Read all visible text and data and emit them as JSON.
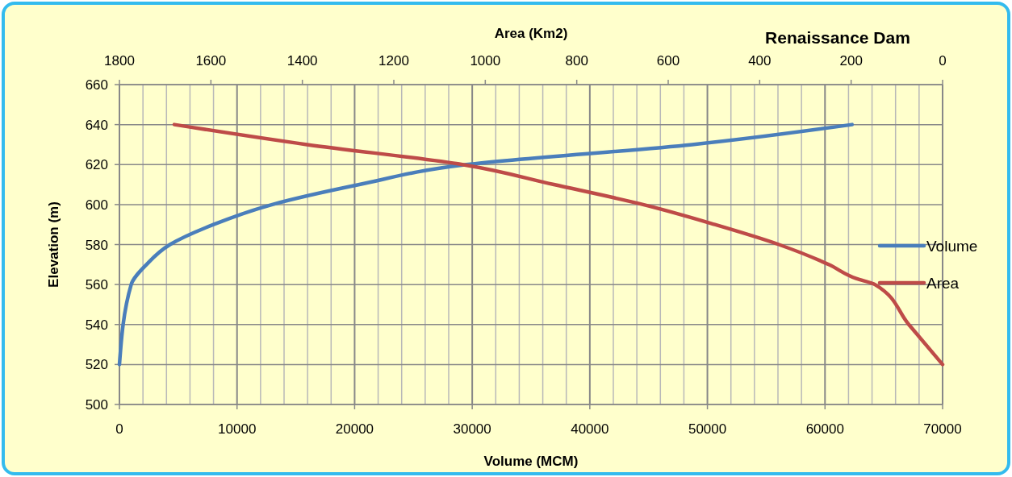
{
  "chart_data": {
    "type": "line",
    "title": "Renaissance Dam",
    "xlabel": "Volume (MCM)",
    "x2label": "Area (Km2)",
    "ylabel": "Elevation (m)",
    "xlim": [
      0,
      70000
    ],
    "xticks": [
      0,
      {
        "value": 2000,
        "label": null
      },
      {
        "value": 4000,
        "label": null
      },
      {
        "value": 6000,
        "label": null
      },
      {
        "value": 8000,
        "label": null
      },
      10000,
      {
        "value": 12000,
        "label": null
      },
      {
        "value": 14000,
        "label": null
      },
      {
        "value": 16000,
        "label": null
      },
      {
        "value": 18000,
        "label": null
      },
      20000,
      {
        "value": 22000,
        "label": null
      },
      {
        "value": 24000,
        "label": null
      },
      {
        "value": 26000,
        "label": null
      },
      {
        "value": 28000,
        "label": null
      },
      30000,
      {
        "value": 32000,
        "label": null
      },
      {
        "value": 34000,
        "label": null
      },
      {
        "value": 36000,
        "label": null
      },
      {
        "value": 38000,
        "label": null
      },
      40000,
      {
        "value": 42000,
        "label": null
      },
      {
        "value": 44000,
        "label": null
      },
      {
        "value": 46000,
        "label": null
      },
      {
        "value": 48000,
        "label": null
      },
      50000,
      {
        "value": 52000,
        "label": null
      },
      {
        "value": 54000,
        "label": null
      },
      {
        "value": 56000,
        "label": null
      },
      {
        "value": 58000,
        "label": null
      },
      60000,
      {
        "value": 62000,
        "label": null
      },
      {
        "value": 64000,
        "label": null
      },
      {
        "value": 66000,
        "label": null
      },
      {
        "value": 68000,
        "label": null
      },
      70000
    ],
    "x2lim": [
      1800,
      0
    ],
    "x2ticks": [
      1800,
      1600,
      1400,
      1200,
      1000,
      800,
      600,
      400,
      200,
      0
    ],
    "ylim": [
      500,
      660
    ],
    "yticks": [
      500,
      520,
      540,
      560,
      580,
      600,
      620,
      640,
      660
    ],
    "grid": true,
    "legend": "right",
    "line_style": "solid",
    "marker": "none",
    "series": [
      {
        "name": "Volume",
        "color": "#4a7ebb",
        "x": [
          0,
          1000,
          2300,
          4300,
          8000,
          13000,
          20400,
          29500,
          48700,
          62300
        ],
        "values": [
          520,
          560,
          570,
          580,
          590,
          600,
          610,
          620,
          630,
          640
        ]
      },
      {
        "name": "Area",
        "color": "#be4b48",
        "axis": "x2",
        "x": [
          0,
          74,
          148,
          189,
          249,
          358,
          498,
          655,
          850,
          1050,
          1390,
          1680
        ],
        "values": [
          520,
          540,
          560,
          563,
          570,
          580,
          590,
          600,
          610,
          620,
          630,
          640
        ]
      }
    ]
  }
}
